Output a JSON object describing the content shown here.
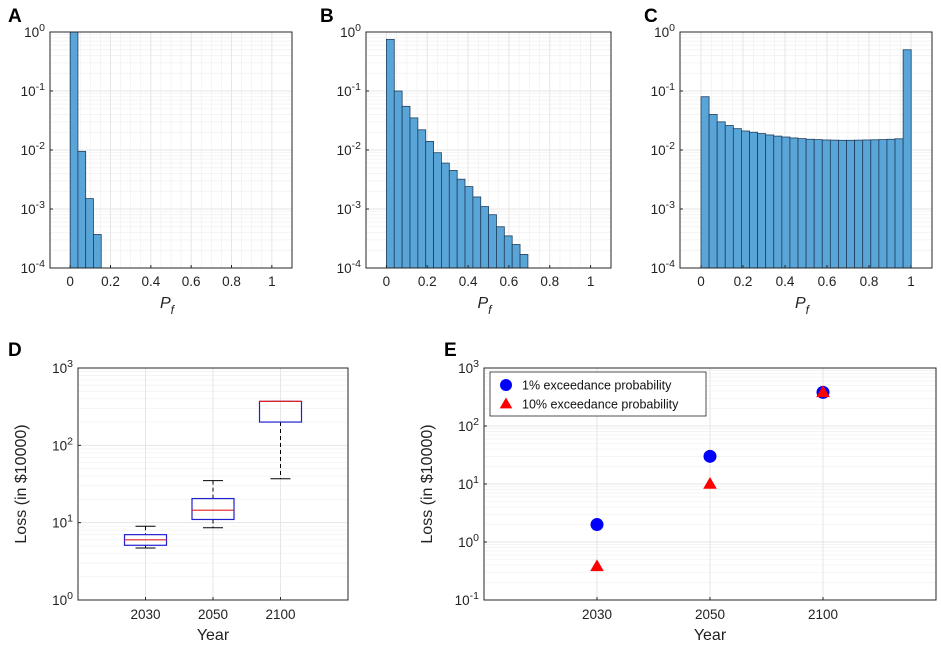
{
  "chart_data": [
    {
      "panel": "A",
      "type": "bar",
      "xlabel": "P",
      "xlabel_sub": "f",
      "ylabel": "",
      "yscale": "log",
      "ylim": [
        0.0001,
        1
      ],
      "xlim": [
        -0.1,
        1.1
      ],
      "xticks": [
        0,
        0.2,
        0.4,
        0.6,
        0.8,
        1
      ],
      "xtick_labels": [
        "0",
        "0.2",
        "0.4",
        "0.6",
        "0.8",
        "1"
      ],
      "yticks": [
        0.0001,
        0.001,
        0.01,
        0.1,
        1
      ],
      "ytick_labels": [
        {
          "base": "10",
          "exp": "-4"
        },
        {
          "base": "10",
          "exp": "-3"
        },
        {
          "base": "10",
          "exp": "-2"
        },
        {
          "base": "10",
          "exp": "-1"
        },
        {
          "base": "10",
          "exp": "0"
        }
      ],
      "grid": true,
      "bin_width": 0.0385,
      "bins": [
        0,
        0.0385,
        0.077,
        0.1155
      ],
      "values": [
        1.0,
        0.0095,
        0.0015,
        0.00037
      ]
    },
    {
      "panel": "B",
      "type": "bar",
      "xlabel": "P",
      "xlabel_sub": "f",
      "ylabel": "",
      "yscale": "log",
      "ylim": [
        0.0001,
        1
      ],
      "xlim": [
        -0.1,
        1.1
      ],
      "xticks": [
        0,
        0.2,
        0.4,
        0.6,
        0.8,
        1
      ],
      "xtick_labels": [
        "0",
        "0.2",
        "0.4",
        "0.6",
        "0.8",
        "1"
      ],
      "yticks": [
        0.0001,
        0.001,
        0.01,
        0.1,
        1
      ],
      "ytick_labels": [
        {
          "base": "10",
          "exp": "-4"
        },
        {
          "base": "10",
          "exp": "-3"
        },
        {
          "base": "10",
          "exp": "-2"
        },
        {
          "base": "10",
          "exp": "-1"
        },
        {
          "base": "10",
          "exp": "0"
        }
      ],
      "grid": true,
      "bin_width": 0.0385,
      "bins": [
        0,
        0.0385,
        0.077,
        0.1155,
        0.154,
        0.1925,
        0.231,
        0.2695,
        0.308,
        0.3465,
        0.385,
        0.4235,
        0.462,
        0.5005,
        0.539,
        0.5775,
        0.616,
        0.6545,
        0.693
      ],
      "values": [
        0.75,
        0.1,
        0.055,
        0.035,
        0.022,
        0.014,
        0.009,
        0.006,
        0.0045,
        0.0032,
        0.0024,
        0.0016,
        0.0011,
        0.0008,
        0.0005,
        0.00035,
        0.00025,
        0.00017,
        0.0001
      ]
    },
    {
      "panel": "C",
      "type": "bar",
      "xlabel": "P",
      "xlabel_sub": "f",
      "ylabel": "",
      "yscale": "log",
      "ylim": [
        0.0001,
        1
      ],
      "xlim": [
        -0.1,
        1.1
      ],
      "xticks": [
        0,
        0.2,
        0.4,
        0.6,
        0.8,
        1
      ],
      "xtick_labels": [
        "0",
        "0.2",
        "0.4",
        "0.6",
        "0.8",
        "1"
      ],
      "yticks": [
        0.0001,
        0.001,
        0.01,
        0.1,
        1
      ],
      "ytick_labels": [
        {
          "base": "10",
          "exp": "-4"
        },
        {
          "base": "10",
          "exp": "-3"
        },
        {
          "base": "10",
          "exp": "-2"
        },
        {
          "base": "10",
          "exp": "-1"
        },
        {
          "base": "10",
          "exp": "0"
        }
      ],
      "grid": true,
      "bin_width": 0.0385,
      "bins": [
        0,
        0.0385,
        0.077,
        0.1155,
        0.154,
        0.1925,
        0.231,
        0.2695,
        0.308,
        0.3465,
        0.385,
        0.4235,
        0.462,
        0.5005,
        0.539,
        0.5775,
        0.616,
        0.6545,
        0.693,
        0.7315,
        0.77,
        0.8085,
        0.847,
        0.8855,
        0.924,
        0.9625
      ],
      "values": [
        0.08,
        0.04,
        0.03,
        0.026,
        0.023,
        0.021,
        0.02,
        0.019,
        0.018,
        0.0172,
        0.0166,
        0.016,
        0.0156,
        0.0152,
        0.015,
        0.0148,
        0.0147,
        0.0146,
        0.0146,
        0.0147,
        0.0148,
        0.0149,
        0.015,
        0.0152,
        0.0155,
        0.5
      ]
    },
    {
      "panel": "D",
      "type": "box",
      "xlabel": "Year",
      "ylabel": "Loss (in $10000)",
      "yscale": "log",
      "ylim": [
        1,
        1000
      ],
      "categories": [
        "2030",
        "2050",
        "2100"
      ],
      "yticks": [
        1,
        10,
        100,
        1000
      ],
      "ytick_labels": [
        {
          "base": "10",
          "exp": "0"
        },
        {
          "base": "10",
          "exp": "1"
        },
        {
          "base": "10",
          "exp": "2"
        },
        {
          "base": "10",
          "exp": "3"
        }
      ],
      "grid": true,
      "boxes": [
        {
          "category": "2030",
          "whisker_low": 4.7,
          "q1": 5.1,
          "median": 6.0,
          "q3": 7.0,
          "whisker_high": 9.0
        },
        {
          "category": "2050",
          "whisker_low": 8.6,
          "q1": 11.0,
          "median": 14.5,
          "q3": 20.5,
          "whisker_high": 35.0
        },
        {
          "category": "2100",
          "whisker_low": 37.0,
          "q1": 200.0,
          "median": 370.0,
          "q3": 370.0,
          "whisker_high": 370.0
        }
      ],
      "box_color": "#2020d0",
      "median_color": "#e02020"
    },
    {
      "panel": "E",
      "type": "scatter",
      "xlabel": "Year",
      "ylabel": "Loss (in $10000)",
      "yscale": "log",
      "ylim": [
        0.1,
        1000
      ],
      "categories": [
        "2030",
        "2050",
        "2100"
      ],
      "yticks": [
        0.1,
        1,
        10,
        100,
        1000
      ],
      "ytick_labels": [
        {
          "base": "10",
          "exp": "-1"
        },
        {
          "base": "10",
          "exp": "0"
        },
        {
          "base": "10",
          "exp": "1"
        },
        {
          "base": "10",
          "exp": "2"
        },
        {
          "base": "10",
          "exp": "3"
        }
      ],
      "grid": true,
      "legend_position": "top-left",
      "series": [
        {
          "name": "1% exceedance probability",
          "marker": "circle",
          "color": "#0000ff",
          "values": [
            2.0,
            30.0,
            380.0
          ]
        },
        {
          "name": "10% exceedance probability",
          "marker": "triangle",
          "color": "#ff0000",
          "values": [
            0.38,
            10.0,
            380.0
          ]
        }
      ]
    }
  ],
  "style": {
    "bar_fill": "#5aa5d8",
    "bar_edge": "#1f3f5f",
    "grid_color": "#e6e6e6",
    "axis_color": "#262626",
    "whisker_color": "#000000"
  }
}
